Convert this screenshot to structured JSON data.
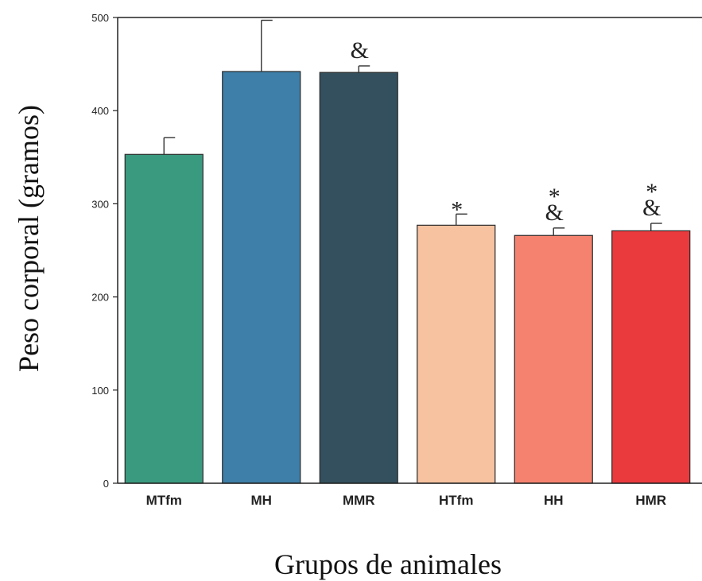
{
  "chart_data": {
    "type": "bar",
    "title": "",
    "xlabel": "Grupos de animales",
    "ylabel": "Peso corporal (gramos)",
    "ylim": [
      0,
      500
    ],
    "yticks": [
      "0",
      "100",
      "200",
      "300",
      "400",
      "500"
    ],
    "categories": [
      "MTfm",
      "MH",
      "MMR",
      "HTfm",
      "HH",
      "HMR"
    ],
    "values": [
      353,
      442,
      441,
      277,
      266,
      271
    ],
    "errors": [
      18,
      55,
      7,
      12,
      8,
      8
    ],
    "annotations": [
      [],
      [],
      [
        "&"
      ],
      [
        "*"
      ],
      [
        "*",
        "&"
      ],
      [
        "*",
        "&"
      ]
    ],
    "colors": [
      "#3a9a7f",
      "#3d7fa8",
      "#34505e",
      "#f6c2a0",
      "#f5826e",
      "#ea3a3e"
    ],
    "grid": false,
    "legend": "none"
  }
}
